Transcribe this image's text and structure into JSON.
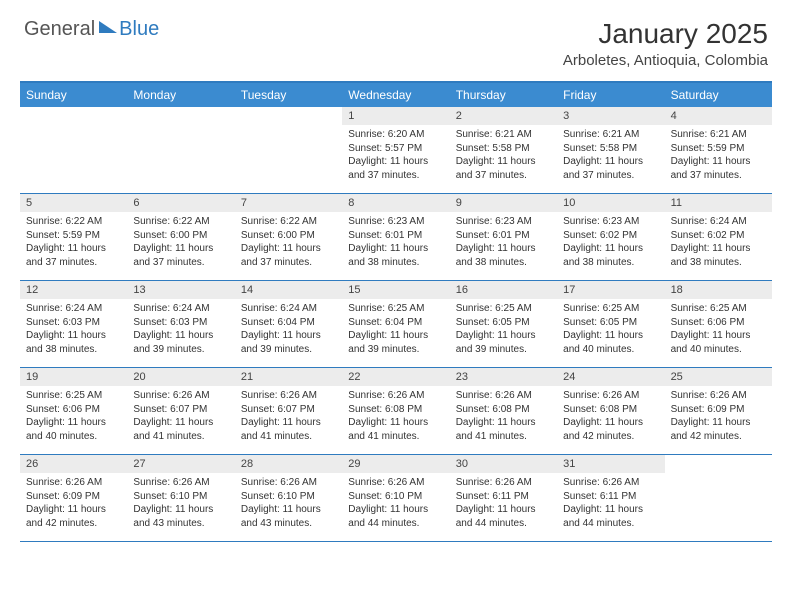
{
  "logo": {
    "text1": "General",
    "text2": "Blue"
  },
  "title": "January 2025",
  "location": "Arboletes, Antioquia, Colombia",
  "colors": {
    "header_bar": "#3b8bd0",
    "border": "#2f7bbf",
    "daynum_bg": "#ececec",
    "text": "#333333",
    "logo_gray": "#555555",
    "logo_blue": "#2f7bbf"
  },
  "dow": [
    "Sunday",
    "Monday",
    "Tuesday",
    "Wednesday",
    "Thursday",
    "Friday",
    "Saturday"
  ],
  "weeks": [
    [
      null,
      null,
      null,
      {
        "n": "1",
        "sr": "6:20 AM",
        "ss": "5:57 PM",
        "dl": "11 hours and 37 minutes."
      },
      {
        "n": "2",
        "sr": "6:21 AM",
        "ss": "5:58 PM",
        "dl": "11 hours and 37 minutes."
      },
      {
        "n": "3",
        "sr": "6:21 AM",
        "ss": "5:58 PM",
        "dl": "11 hours and 37 minutes."
      },
      {
        "n": "4",
        "sr": "6:21 AM",
        "ss": "5:59 PM",
        "dl": "11 hours and 37 minutes."
      }
    ],
    [
      {
        "n": "5",
        "sr": "6:22 AM",
        "ss": "5:59 PM",
        "dl": "11 hours and 37 minutes."
      },
      {
        "n": "6",
        "sr": "6:22 AM",
        "ss": "6:00 PM",
        "dl": "11 hours and 37 minutes."
      },
      {
        "n": "7",
        "sr": "6:22 AM",
        "ss": "6:00 PM",
        "dl": "11 hours and 37 minutes."
      },
      {
        "n": "8",
        "sr": "6:23 AM",
        "ss": "6:01 PM",
        "dl": "11 hours and 38 minutes."
      },
      {
        "n": "9",
        "sr": "6:23 AM",
        "ss": "6:01 PM",
        "dl": "11 hours and 38 minutes."
      },
      {
        "n": "10",
        "sr": "6:23 AM",
        "ss": "6:02 PM",
        "dl": "11 hours and 38 minutes."
      },
      {
        "n": "11",
        "sr": "6:24 AM",
        "ss": "6:02 PM",
        "dl": "11 hours and 38 minutes."
      }
    ],
    [
      {
        "n": "12",
        "sr": "6:24 AM",
        "ss": "6:03 PM",
        "dl": "11 hours and 38 minutes."
      },
      {
        "n": "13",
        "sr": "6:24 AM",
        "ss": "6:03 PM",
        "dl": "11 hours and 39 minutes."
      },
      {
        "n": "14",
        "sr": "6:24 AM",
        "ss": "6:04 PM",
        "dl": "11 hours and 39 minutes."
      },
      {
        "n": "15",
        "sr": "6:25 AM",
        "ss": "6:04 PM",
        "dl": "11 hours and 39 minutes."
      },
      {
        "n": "16",
        "sr": "6:25 AM",
        "ss": "6:05 PM",
        "dl": "11 hours and 39 minutes."
      },
      {
        "n": "17",
        "sr": "6:25 AM",
        "ss": "6:05 PM",
        "dl": "11 hours and 40 minutes."
      },
      {
        "n": "18",
        "sr": "6:25 AM",
        "ss": "6:06 PM",
        "dl": "11 hours and 40 minutes."
      }
    ],
    [
      {
        "n": "19",
        "sr": "6:25 AM",
        "ss": "6:06 PM",
        "dl": "11 hours and 40 minutes."
      },
      {
        "n": "20",
        "sr": "6:26 AM",
        "ss": "6:07 PM",
        "dl": "11 hours and 41 minutes."
      },
      {
        "n": "21",
        "sr": "6:26 AM",
        "ss": "6:07 PM",
        "dl": "11 hours and 41 minutes."
      },
      {
        "n": "22",
        "sr": "6:26 AM",
        "ss": "6:08 PM",
        "dl": "11 hours and 41 minutes."
      },
      {
        "n": "23",
        "sr": "6:26 AM",
        "ss": "6:08 PM",
        "dl": "11 hours and 41 minutes."
      },
      {
        "n": "24",
        "sr": "6:26 AM",
        "ss": "6:08 PM",
        "dl": "11 hours and 42 minutes."
      },
      {
        "n": "25",
        "sr": "6:26 AM",
        "ss": "6:09 PM",
        "dl": "11 hours and 42 minutes."
      }
    ],
    [
      {
        "n": "26",
        "sr": "6:26 AM",
        "ss": "6:09 PM",
        "dl": "11 hours and 42 minutes."
      },
      {
        "n": "27",
        "sr": "6:26 AM",
        "ss": "6:10 PM",
        "dl": "11 hours and 43 minutes."
      },
      {
        "n": "28",
        "sr": "6:26 AM",
        "ss": "6:10 PM",
        "dl": "11 hours and 43 minutes."
      },
      {
        "n": "29",
        "sr": "6:26 AM",
        "ss": "6:10 PM",
        "dl": "11 hours and 44 minutes."
      },
      {
        "n": "30",
        "sr": "6:26 AM",
        "ss": "6:11 PM",
        "dl": "11 hours and 44 minutes."
      },
      {
        "n": "31",
        "sr": "6:26 AM",
        "ss": "6:11 PM",
        "dl": "11 hours and 44 minutes."
      },
      null
    ]
  ],
  "labels": {
    "sunrise": "Sunrise:",
    "sunset": "Sunset:",
    "daylight": "Daylight:"
  }
}
